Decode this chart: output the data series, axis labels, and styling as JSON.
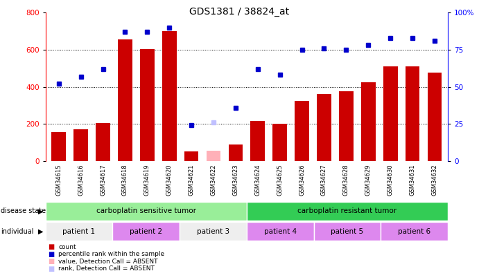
{
  "title": "GDS1381 / 38824_at",
  "samples": [
    "GSM34615",
    "GSM34616",
    "GSM34617",
    "GSM34618",
    "GSM34619",
    "GSM34620",
    "GSM34621",
    "GSM34622",
    "GSM34623",
    "GSM34624",
    "GSM34625",
    "GSM34626",
    "GSM34627",
    "GSM34628",
    "GSM34629",
    "GSM34630",
    "GSM34631",
    "GSM34632"
  ],
  "bar_heights": [
    155,
    170,
    205,
    655,
    605,
    700,
    50,
    55,
    90,
    215,
    200,
    325,
    360,
    375,
    425,
    510,
    510,
    475
  ],
  "bar_absent": [
    false,
    false,
    false,
    false,
    false,
    false,
    false,
    true,
    false,
    false,
    false,
    false,
    false,
    false,
    false,
    false,
    false,
    false
  ],
  "dot_values": [
    52,
    57,
    62,
    87,
    87,
    90,
    24,
    26,
    36,
    62,
    58,
    75,
    76,
    75,
    78,
    83,
    83,
    81
  ],
  "dot_absent": [
    false,
    false,
    false,
    false,
    false,
    false,
    false,
    true,
    false,
    false,
    false,
    false,
    false,
    false,
    false,
    false,
    false,
    false
  ],
  "bar_color": "#CC0000",
  "bar_absent_color": "#FFB0B8",
  "dot_color": "#0000CC",
  "dot_absent_color": "#C0C0FF",
  "ylim_left": [
    0,
    800
  ],
  "ylim_right": [
    0,
    100
  ],
  "yticks_left": [
    0,
    200,
    400,
    600,
    800
  ],
  "yticks_right": [
    0,
    25,
    50,
    75,
    100
  ],
  "ytick_labels_right": [
    "0",
    "25",
    "50",
    "75",
    "100%"
  ],
  "disease_state_groups": [
    {
      "label": "carboplatin sensitive tumor",
      "start": 0,
      "end": 8,
      "color": "#99EE99"
    },
    {
      "label": "carboplatin resistant tumor",
      "start": 9,
      "end": 17,
      "color": "#33CC55"
    }
  ],
  "individual_groups": [
    {
      "label": "patient 1",
      "start": 0,
      "end": 2,
      "color": "#EEEEEE"
    },
    {
      "label": "patient 2",
      "start": 3,
      "end": 5,
      "color": "#DD88EE"
    },
    {
      "label": "patient 3",
      "start": 6,
      "end": 8,
      "color": "#EEEEEE"
    },
    {
      "label": "patient 4",
      "start": 9,
      "end": 11,
      "color": "#DD88EE"
    },
    {
      "label": "patient 5",
      "start": 12,
      "end": 14,
      "color": "#DD88EE"
    },
    {
      "label": "patient 6",
      "start": 15,
      "end": 17,
      "color": "#DD88EE"
    }
  ],
  "legend_items": [
    {
      "color": "#CC0000",
      "label": "count"
    },
    {
      "color": "#0000CC",
      "label": "percentile rank within the sample"
    },
    {
      "color": "#FFB0B8",
      "label": "value, Detection Call = ABSENT"
    },
    {
      "color": "#C0C0FF",
      "label": "rank, Detection Call = ABSENT"
    }
  ],
  "bg_color": "#FFFFFF",
  "sample_bg_color": "#CCCCCC"
}
